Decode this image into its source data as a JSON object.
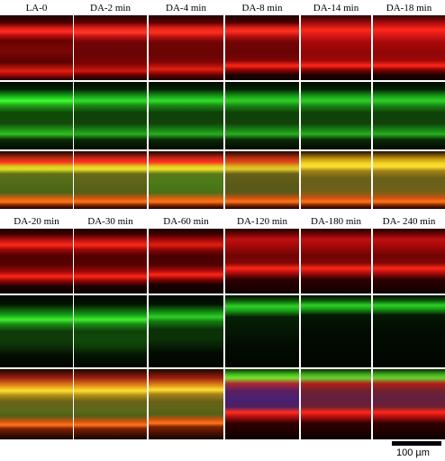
{
  "figure": {
    "top_row_labels": [
      "LA-0",
      "DA-2 min",
      "DA-4 min",
      "DA-8 min",
      "DA-14 min",
      "DA-18 min"
    ],
    "bottom_row_labels": [
      "DA-20 min",
      "DA-30 min",
      "DA-60 min",
      "DA-120 min",
      "DA-180 min",
      "DA- 240 min"
    ],
    "channels": [
      "red",
      "green",
      "merge"
    ],
    "scale_bar_label": "100 µm"
  }
}
